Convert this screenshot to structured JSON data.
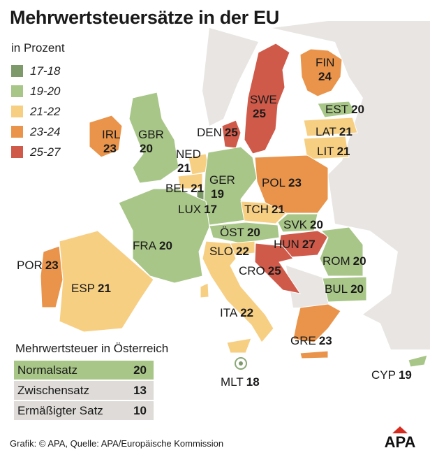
{
  "title": "Mehrwertsteuersätze in der EU",
  "unit_label": "in Prozent",
  "legend": [
    {
      "label": "17-18",
      "color": "#7f9a6a"
    },
    {
      "label": "19-20",
      "color": "#a8c688"
    },
    {
      "label": "21-22",
      "color": "#f7cf83"
    },
    {
      "label": "23-24",
      "color": "#e9944a"
    },
    {
      "label": "25-27",
      "color": "#cf5a4a"
    }
  ],
  "colors": {
    "nonEU": "#e8e5e2",
    "border": "#ffffff"
  },
  "countries": {
    "IRL": {
      "name": "IRL",
      "rate": "23"
    },
    "GBR": {
      "name": "GBR",
      "rate": "20"
    },
    "DEN": {
      "name": "DEN",
      "rate": "25"
    },
    "SWE": {
      "name": "SWE",
      "rate": "25"
    },
    "FIN": {
      "name": "FIN",
      "rate": "24"
    },
    "EST": {
      "name": "EST",
      "rate": "20"
    },
    "LAT": {
      "name": "LAT",
      "rate": "21"
    },
    "LIT": {
      "name": "LIT",
      "rate": "21"
    },
    "NED": {
      "name": "NED",
      "rate": "21"
    },
    "BEL": {
      "name": "BEL",
      "rate": "21"
    },
    "LUX": {
      "name": "LUX",
      "rate": "17"
    },
    "GER": {
      "name": "GER",
      "rate": "19"
    },
    "POL": {
      "name": "POL",
      "rate": "23"
    },
    "TCH": {
      "name": "TCH",
      "rate": "21"
    },
    "SVK": {
      "name": "SVK",
      "rate": "20"
    },
    "OST": {
      "name": "ÖST",
      "rate": "20"
    },
    "HUN": {
      "name": "HUN",
      "rate": "27"
    },
    "FRA": {
      "name": "FRA",
      "rate": "20"
    },
    "SLO": {
      "name": "SLO",
      "rate": "22"
    },
    "CRO": {
      "name": "CRO",
      "rate": "25"
    },
    "ROM": {
      "name": "ROM",
      "rate": "20"
    },
    "BUL": {
      "name": "BUL",
      "rate": "20"
    },
    "POR": {
      "name": "POR",
      "rate": "23"
    },
    "ESP": {
      "name": "ESP",
      "rate": "21"
    },
    "ITA": {
      "name": "ITA",
      "rate": "22"
    },
    "GRE": {
      "name": "GRE",
      "rate": "23"
    },
    "MLT": {
      "name": "MLT",
      "rate": "18"
    },
    "CYP": {
      "name": "CYP",
      "rate": "19"
    }
  },
  "austria": {
    "title": "Mehrwertsteuer in Österreich",
    "rows": [
      {
        "label": "Normalsatz",
        "value": "20",
        "color": "#a8c688"
      },
      {
        "label": "Zwischensatz",
        "value": "13",
        "color": "#dedbd8"
      },
      {
        "label": "Ermäßigter Satz",
        "value": "10",
        "color": "#dedbd8"
      }
    ]
  },
  "footer": "Grafik: © APA, Quelle: APA/Europäische Kommission",
  "logo": "APA"
}
